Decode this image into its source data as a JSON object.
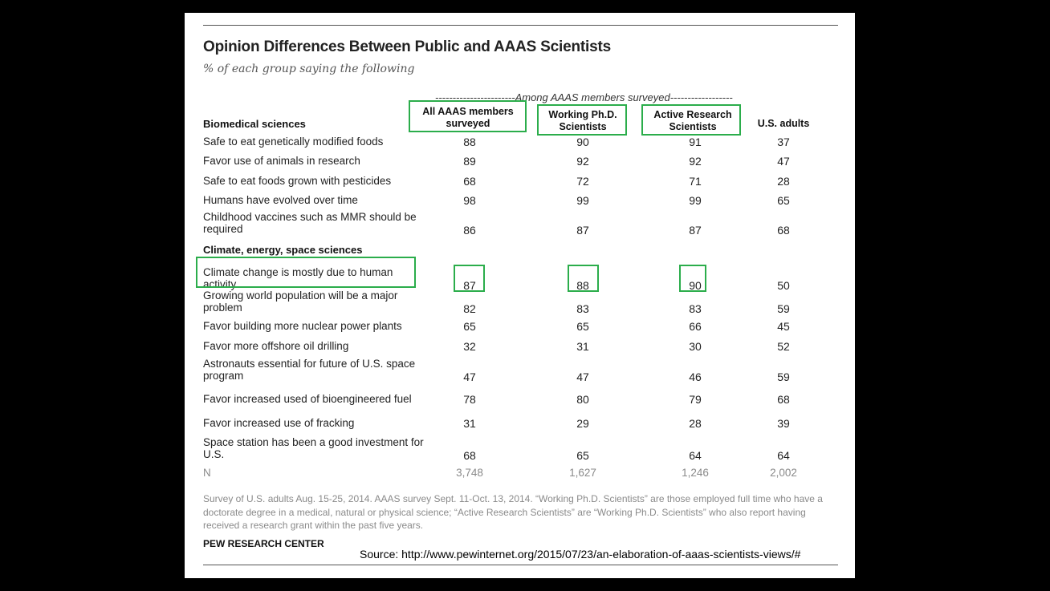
{
  "chart_data": {
    "type": "table",
    "title": "Opinion Differences Between Public and AAAS Scientists",
    "subtitle": "% of each group saying the following",
    "group_label": "-----------------------Among AAAS members surveyed------------------",
    "columns": [
      "All AAAS members surveyed",
      "Working Ph.D. Scientists",
      "Active Research Scientists",
      "U.S. adults"
    ],
    "sections": [
      {
        "name": "Biomedical sciences",
        "rows": [
          {
            "label": "Safe to eat genetically modified foods",
            "values": [
              "88",
              "90",
              "91",
              "37"
            ]
          },
          {
            "label": "Favor use of animals in research",
            "values": [
              "89",
              "92",
              "92",
              "47"
            ]
          },
          {
            "label": "Safe to eat foods grown with pesticides",
            "values": [
              "68",
              "72",
              "71",
              "28"
            ]
          },
          {
            "label": "Humans have evolved over time",
            "values": [
              "98",
              "99",
              "99",
              "65"
            ]
          },
          {
            "label": "Childhood vaccines such as MMR should be required",
            "values": [
              "86",
              "87",
              "87",
              "68"
            ]
          }
        ]
      },
      {
        "name": "Climate, energy, space sciences",
        "rows": [
          {
            "label": "Climate change is mostly due to human activity",
            "values": [
              "87",
              "88",
              "90",
              "50"
            ]
          },
          {
            "label": "Growing world population will be a major problem",
            "values": [
              "82",
              "83",
              "83",
              "59"
            ]
          },
          {
            "label": "Favor building more nuclear power plants",
            "values": [
              "65",
              "65",
              "66",
              "45"
            ]
          },
          {
            "label": "Favor more offshore oil drilling",
            "values": [
              "32",
              "31",
              "30",
              "52"
            ]
          },
          {
            "label": "Astronauts essential for future of U.S. space program",
            "values": [
              "47",
              "47",
              "46",
              "59"
            ]
          },
          {
            "label": "Favor increased used of bioengineered fuel",
            "values": [
              "78",
              "80",
              "79",
              "68"
            ]
          },
          {
            "label": "Favor increased use of fracking",
            "values": [
              "31",
              "29",
              "28",
              "39"
            ]
          },
          {
            "label": "Space station has been a good investment for U.S.",
            "values": [
              "68",
              "65",
              "64",
              "64"
            ]
          }
        ]
      }
    ],
    "n_row": {
      "label": "N",
      "values": [
        "3,748",
        "1,627",
        "1,246",
        "2,002"
      ]
    },
    "note": "Survey of U.S. adults Aug. 15-25, 2014. AAAS survey Sept. 11-Oct. 13, 2014. “Working Ph.D. Scientists” are those employed full time who have a doctorate degree in a medical, natural or physical science; “Active Research Scientists” are “Working Ph.D. Scientists” who also report having received a research grant within the past five years.",
    "brand": "PEW RESEARCH CENTER",
    "source": "Source: http://www.pewinternet.org/2015/07/23/an-elaboration-of-aaas-scientists-views/#"
  },
  "colors": {
    "highlight": "#2bad4b",
    "background": "#000000",
    "card": "#ffffff"
  }
}
